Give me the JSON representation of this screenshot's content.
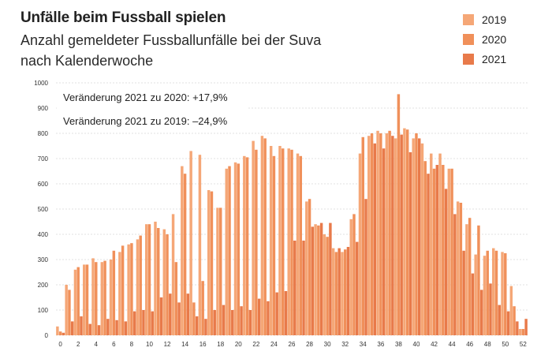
{
  "chart_data": {
    "type": "bar",
    "title": "Unfälle beim Fussball spielen",
    "subtitle_line1": "Anzahl gemeldeter Fussballunfälle bei der Suva",
    "subtitle_line2": "nach Kalenderwoche",
    "xlabel": "",
    "ylabel": "",
    "ylim": [
      0,
      1000
    ],
    "y_ticks": [
      0,
      100,
      200,
      300,
      400,
      500,
      600,
      700,
      800,
      900,
      1000
    ],
    "x_tick_labels": [
      "0",
      "2",
      "4",
      "6",
      "8",
      "10",
      "12",
      "14",
      "16",
      "18",
      "20",
      "22",
      "24",
      "26",
      "28",
      "30",
      "32",
      "34",
      "36",
      "38",
      "40",
      "42",
      "44",
      "46",
      "48",
      "50",
      "52"
    ],
    "categories": [
      "0",
      "1",
      "2",
      "3",
      "4",
      "5",
      "6",
      "7",
      "8",
      "9",
      "10",
      "11",
      "12",
      "13",
      "14",
      "15",
      "16",
      "17",
      "18",
      "19",
      "20",
      "21",
      "22",
      "23",
      "24",
      "25",
      "26",
      "27",
      "28",
      "29",
      "30",
      "31",
      "32",
      "33",
      "34",
      "35",
      "36",
      "37",
      "38",
      "39",
      "40",
      "41",
      "42",
      "43",
      "44",
      "45",
      "46",
      "47",
      "48",
      "49",
      "50",
      "51",
      "52"
    ],
    "legend_position": "top-right",
    "grid": true,
    "annotations": [
      "Veränderung 2021 zu 2020: +17,9%",
      "Veränderung 2021 zu 2019: –24,9%"
    ],
    "series": [
      {
        "name": "2019",
        "color": "#f5a777",
        "values": [
          35,
          200,
          260,
          280,
          305,
          290,
          300,
          330,
          360,
          380,
          440,
          450,
          420,
          480,
          670,
          730,
          715,
          575,
          505,
          660,
          685,
          710,
          770,
          790,
          750,
          750,
          740,
          720,
          530,
          440,
          400,
          345,
          330,
          460,
          720,
          790,
          810,
          800,
          780,
          820,
          780,
          760,
          720,
          720,
          660,
          530,
          440,
          320,
          315,
          345,
          330,
          195,
          25
        ]
      },
      {
        "name": "2020",
        "color": "#f0905a",
        "values": [
          15,
          180,
          270,
          280,
          290,
          295,
          335,
          355,
          365,
          395,
          440,
          425,
          400,
          290,
          640,
          130,
          215,
          570,
          505,
          670,
          680,
          705,
          735,
          780,
          710,
          740,
          735,
          710,
          540,
          435,
          390,
          330,
          340,
          480,
          785,
          800,
          800,
          810,
          955,
          815,
          800,
          690,
          660,
          675,
          660,
          525,
          465,
          435,
          335,
          335,
          325,
          115,
          25
        ]
      },
      {
        "name": "2021",
        "color": "#e87a4a",
        "values": [
          10,
          55,
          75,
          45,
          40,
          65,
          60,
          55,
          95,
          100,
          95,
          150,
          165,
          130,
          165,
          75,
          65,
          100,
          120,
          100,
          115,
          100,
          145,
          135,
          170,
          175,
          375,
          375,
          430,
          445,
          445,
          345,
          350,
          370,
          540,
          760,
          740,
          790,
          795,
          725,
          780,
          640,
          675,
          580,
          480,
          335,
          245,
          180,
          205,
          120,
          95,
          55,
          65
        ]
      }
    ]
  }
}
